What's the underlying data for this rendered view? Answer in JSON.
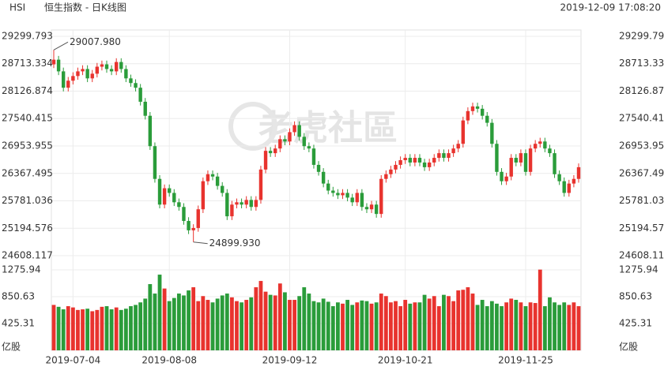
{
  "chart_data": {
    "type": "candlestick",
    "symbol": "HSI",
    "title": "恒生指数 - 日K线图",
    "timestamp": "2019-12-09 17:08:20",
    "watermark": "老虎社區",
    "volume_unit": "亿股",
    "up_color": "#e8332e",
    "down_color": "#2a9c3a",
    "grid": true,
    "categories": [
      null,
      null,
      null,
      null,
      "2019-07-04",
      null,
      null,
      null,
      null,
      null,
      null,
      null,
      null,
      null,
      null,
      null,
      null,
      null,
      null,
      null,
      null,
      null,
      null,
      null,
      "2019-08-08",
      null,
      null,
      null,
      null,
      null,
      null,
      null,
      null,
      null,
      null,
      null,
      null,
      null,
      null,
      null,
      null,
      null,
      null,
      null,
      null,
      null,
      null,
      null,
      null,
      "2019-09-12",
      null,
      null,
      null,
      null,
      null,
      null,
      null,
      null,
      null,
      null,
      null,
      null,
      null,
      null,
      null,
      null,
      null,
      null,
      null,
      null,
      null,
      null,
      null,
      "2019-10-21",
      null,
      null,
      null,
      null,
      null,
      null,
      null,
      null,
      null,
      null,
      null,
      null,
      null,
      null,
      null,
      null,
      null,
      null,
      null,
      null,
      null,
      null,
      null,
      null,
      "2019-11-25",
      null,
      null,
      null,
      null,
      null,
      null,
      null,
      null,
      null,
      null,
      null
    ],
    "open": [
      28700,
      28800,
      28550,
      28200,
      28350,
      28450,
      28550,
      28600,
      28400,
      28500,
      28650,
      28700,
      28600,
      28550,
      28750,
      28600,
      28400,
      28300,
      28200,
      27900,
      27600,
      26950,
      26250,
      25700,
      26050,
      25950,
      25750,
      25650,
      25350,
      25150,
      25200,
      25600,
      26200,
      26350,
      26300,
      26100,
      25950,
      25450,
      25700,
      25750,
      25700,
      25800,
      25650,
      25800,
      26450,
      26850,
      26800,
      26900,
      27100,
      27050,
      27250,
      27400,
      27150,
      26950,
      26900,
      26550,
      26400,
      26150,
      26000,
      25950,
      25900,
      25950,
      25850,
      25750,
      25950,
      25650,
      25600,
      25700,
      25500,
      26250,
      26350,
      26450,
      26550,
      26650,
      26700,
      26600,
      26700,
      26600,
      26500,
      26600,
      26700,
      26800,
      26700,
      26800,
      26900,
      27000,
      27500,
      27700,
      27800,
      27750,
      27600,
      27450,
      27000,
      26400,
      26200,
      26300,
      26700,
      26600,
      26800,
      26400,
      26900,
      27000,
      27050,
      26900,
      26800,
      26350,
      26200,
      25950,
      26150,
      26250
    ],
    "high": [
      29007.98,
      28880,
      28630,
      28430,
      28530,
      28630,
      28680,
      28680,
      28580,
      28730,
      28780,
      28780,
      28680,
      28830,
      28830,
      28680,
      28480,
      28380,
      28280,
      27980,
      27680,
      27030,
      26330,
      26130,
      26130,
      26030,
      25830,
      25730,
      25430,
      25280,
      25680,
      26280,
      26430,
      26430,
      26380,
      26180,
      26030,
      25780,
      25830,
      25830,
      25880,
      25880,
      25880,
      26530,
      26930,
      26930,
      26980,
      27180,
      27180,
      27330,
      27480,
      27480,
      27230,
      27030,
      26980,
      26630,
      26480,
      26230,
      26080,
      26030,
      26030,
      26030,
      25930,
      26030,
      26030,
      25730,
      25780,
      25780,
      26330,
      26430,
      26530,
      26630,
      26730,
      26780,
      26780,
      26780,
      26780,
      26680,
      26680,
      26780,
      26880,
      26880,
      26880,
      26980,
      27080,
      27580,
      27780,
      27880,
      27880,
      27830,
      27680,
      27530,
      27080,
      26480,
      26380,
      26780,
      26780,
      26880,
      26880,
      26980,
      27080,
      27130,
      27130,
      26980,
      26880,
      26430,
      26280,
      26230,
      26330,
      26580
    ],
    "low": [
      28620,
      28470,
      28120,
      28120,
      28270,
      28370,
      28470,
      28320,
      28320,
      28420,
      28570,
      28520,
      28470,
      28470,
      28520,
      28320,
      28220,
      28120,
      27820,
      27520,
      26870,
      26170,
      25620,
      25620,
      25870,
      25670,
      25570,
      25270,
      25070,
      24899.93,
      25120,
      25520,
      26120,
      26220,
      26020,
      25870,
      25370,
      25370,
      25620,
      25620,
      25620,
      25570,
      25570,
      25720,
      26370,
      26720,
      26720,
      26820,
      26970,
      26970,
      27170,
      27070,
      26870,
      26820,
      26470,
      26320,
      26070,
      25920,
      25870,
      25820,
      25820,
      25770,
      25670,
      25670,
      25570,
      25520,
      25520,
      25420,
      25420,
      26170,
      26270,
      26370,
      26470,
      26570,
      26520,
      26520,
      26520,
      26420,
      26420,
      26520,
      26620,
      26620,
      26620,
      26720,
      26820,
      26920,
      27420,
      27620,
      27670,
      27520,
      27370,
      26920,
      26320,
      26120,
      26120,
      26220,
      26520,
      26520,
      26320,
      26320,
      26820,
      26920,
      26820,
      26720,
      26270,
      26120,
      25870,
      25870,
      26070,
      26170
    ],
    "close": [
      28800,
      28550,
      28200,
      28350,
      28450,
      28550,
      28600,
      28400,
      28500,
      28650,
      28700,
      28600,
      28550,
      28750,
      28600,
      28400,
      28300,
      28200,
      27900,
      27600,
      26950,
      26250,
      25700,
      26050,
      25950,
      25750,
      25650,
      25350,
      25150,
      25200,
      25600,
      26200,
      26350,
      26300,
      26100,
      25950,
      25450,
      25700,
      25750,
      25700,
      25800,
      25650,
      25800,
      26450,
      26850,
      26800,
      26900,
      27100,
      27050,
      27250,
      27400,
      27150,
      26950,
      26900,
      26550,
      26400,
      26150,
      26000,
      25950,
      25900,
      25950,
      25850,
      25750,
      25950,
      25650,
      25600,
      25700,
      25500,
      26250,
      26350,
      26450,
      26550,
      26650,
      26700,
      26600,
      26700,
      26600,
      26500,
      26600,
      26700,
      26800,
      26700,
      26800,
      26900,
      27000,
      27500,
      27700,
      27800,
      27750,
      27600,
      27450,
      27000,
      26400,
      26200,
      26300,
      26700,
      26600,
      26800,
      26400,
      26900,
      27000,
      27050,
      26900,
      26800,
      26350,
      26200,
      25950,
      26150,
      26250,
      26500
    ],
    "volume": [
      720,
      690,
      650,
      700,
      680,
      640,
      650,
      660,
      620,
      640,
      690,
      700,
      650,
      680,
      640,
      660,
      700,
      720,
      760,
      820,
      1050,
      900,
      1200,
      980,
      780,
      830,
      900,
      870,
      950,
      1000,
      780,
      860,
      800,
      760,
      820,
      870,
      900,
      840,
      780,
      760,
      800,
      840,
      1000,
      1100,
      930,
      880,
      870,
      1060,
      920,
      800,
      800,
      860,
      1000,
      900,
      780,
      760,
      820,
      770,
      700,
      760,
      740,
      800,
      720,
      760,
      790,
      780,
      740,
      760,
      900,
      860,
      760,
      780,
      700,
      800,
      740,
      760,
      760,
      880,
      820,
      860,
      700,
      880,
      860,
      780,
      950,
      960,
      1000,
      900,
      720,
      800,
      700,
      780,
      740,
      700,
      760,
      820,
      800,
      760,
      700,
      760,
      750,
      1280,
      700,
      840,
      760,
      720,
      760,
      720,
      760,
      700
    ],
    "ylim": [
      24608.117,
      29299.793
    ],
    "yticks": [
      24608.117,
      25194.576,
      25781.036,
      26367.495,
      26953.955,
      27540.415,
      28126.874,
      28713.334,
      29299.793
    ],
    "y2lim": [
      0,
      1275.94
    ],
    "y2ticks": [
      425.31,
      850.63,
      1275.94
    ],
    "annotations": [
      {
        "value": 29007.98,
        "label": "29007.980"
      },
      {
        "value": 24899.93,
        "label": "24899.930"
      }
    ]
  }
}
